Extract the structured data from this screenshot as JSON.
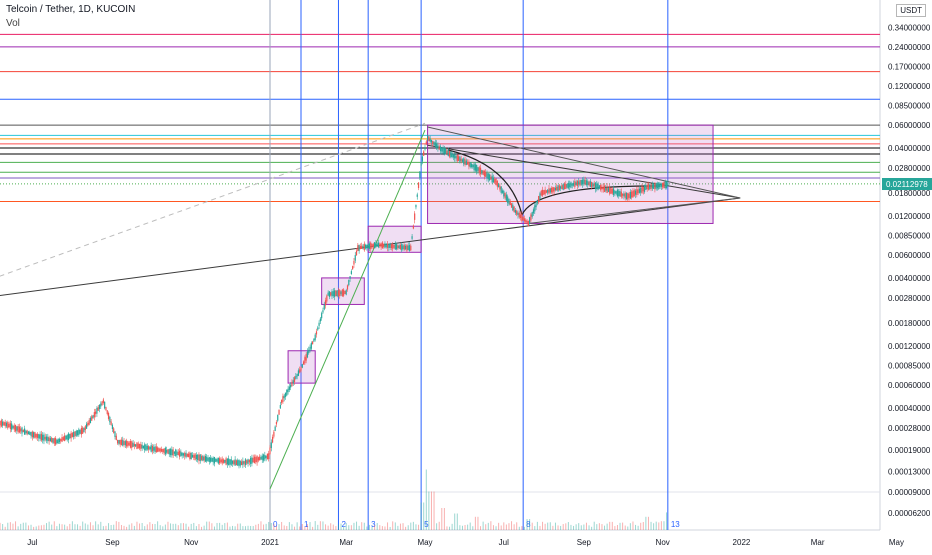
{
  "header": {
    "symbol_line": "Telcoin / Tether, 1D, KUCOIN",
    "volume_label": "Vol",
    "currency": "USDT"
  },
  "chart_data": {
    "type": "candlestick",
    "scale": "log",
    "price_ticks": [
      "0.34000000",
      "0.24000000",
      "0.17000000",
      "0.12000000",
      "0.08500000",
      "0.06000000",
      "0.04000000",
      "0.02800000",
      "0.01800000",
      "0.01200000",
      "0.00850000",
      "0.00600000",
      "0.00400000",
      "0.00280000",
      "0.00180000",
      "0.00120000",
      "0.00085000",
      "0.00060000",
      "0.00040000",
      "0.00028000",
      "0.00019000",
      "0.00013000",
      "0.00009000",
      "0.00006200"
    ],
    "last_price": "0.02112978",
    "x_labels": [
      "Jul",
      "Sep",
      "Nov",
      "2021",
      "Mar",
      "May",
      "Jul",
      "Sep",
      "Nov",
      "2022",
      "Mar",
      "May"
    ],
    "fib_time_labels": [
      "0",
      "1",
      "2",
      "3",
      "5",
      "8",
      "13"
    ],
    "price_path": [
      [
        "2020-05-27",
        0.00032
      ],
      [
        "2020-06-10",
        0.0003
      ],
      [
        "2020-07-01",
        0.00025
      ],
      [
        "2020-07-20",
        0.00022
      ],
      [
        "2020-08-10",
        0.00027
      ],
      [
        "2020-08-25",
        0.00045
      ],
      [
        "2020-09-05",
        0.00022
      ],
      [
        "2020-09-25",
        0.0002
      ],
      [
        "2020-10-20",
        0.00018
      ],
      [
        "2020-11-15",
        0.00016
      ],
      [
        "2020-12-10",
        0.00015
      ],
      [
        "2020-12-31",
        0.00017
      ],
      [
        "2021-01-10",
        0.00045
      ],
      [
        "2021-01-25",
        0.0008
      ],
      [
        "2021-02-05",
        0.0014
      ],
      [
        "2021-02-15",
        0.003
      ],
      [
        "2021-03-01",
        0.0031
      ],
      [
        "2021-03-10",
        0.0068
      ],
      [
        "2021-03-25",
        0.0072
      ],
      [
        "2021-04-20",
        0.0068
      ],
      [
        "2021-04-28",
        0.03
      ],
      [
        "2021-05-03",
        0.048
      ],
      [
        "2021-05-12",
        0.04
      ],
      [
        "2021-05-25",
        0.034
      ],
      [
        "2021-06-10",
        0.028
      ],
      [
        "2021-06-25",
        0.022
      ],
      [
        "2021-07-10",
        0.013
      ],
      [
        "2021-07-20",
        0.0105
      ],
      [
        "2021-07-30",
        0.018
      ],
      [
        "2021-08-15",
        0.02
      ],
      [
        "2021-09-01",
        0.022
      ],
      [
        "2021-09-20",
        0.019
      ],
      [
        "2021-10-05",
        0.017
      ],
      [
        "2021-10-20",
        0.02
      ],
      [
        "2021-11-05",
        0.021
      ]
    ],
    "volume_spikes": [
      [
        "2021-04-30",
        0.25
      ],
      [
        "2021-05-03",
        0.55
      ],
      [
        "2021-05-06",
        0.35
      ],
      [
        "2021-05-15",
        0.2
      ],
      [
        "2021-05-25",
        0.15
      ],
      [
        "2021-06-10",
        0.12
      ],
      [
        "2021-07-20",
        0.1
      ],
      [
        "2021-10-20",
        0.12
      ],
      [
        "2021-11-01",
        0.08
      ],
      [
        "2021-11-05",
        0.16
      ]
    ],
    "horizontal_levels": [
      {
        "price": 0.3,
        "color": "#e91e63"
      },
      {
        "price": 0.24,
        "color": "#9c27b0"
      },
      {
        "price": 0.155,
        "color": "#f44336"
      },
      {
        "price": 0.095,
        "color": "#2962ff"
      },
      {
        "price": 0.06,
        "color": "#555555"
      },
      {
        "price": 0.05,
        "color": "#26c6da"
      },
      {
        "price": 0.047,
        "color": "#ff9800"
      },
      {
        "price": 0.043,
        "color": "#ff5252"
      },
      {
        "price": 0.04,
        "color": "#000000"
      },
      {
        "price": 0.036,
        "color": "#000000"
      },
      {
        "price": 0.031,
        "color": "#4caf50"
      },
      {
        "price": 0.026,
        "color": "#4caf50"
      },
      {
        "price": 0.0235,
        "color": "#7e57c2"
      },
      {
        "price": 0.0212,
        "color": "#4caf50",
        "dotted": true
      },
      {
        "price": 0.0155,
        "color": "#ff5722"
      }
    ],
    "fib_time_dates": [
      "2021-01-01",
      "2021-01-25",
      "2021-02-23",
      "2021-03-18",
      "2021-04-28",
      "2021-07-16",
      "2021-11-05"
    ],
    "boxes": [
      {
        "from": "2021-01-15",
        "to": "2021-02-05",
        "hi": 0.0011,
        "lo": 0.00062
      },
      {
        "from": "2021-02-10",
        "to": "2021-03-15",
        "hi": 0.004,
        "lo": 0.0025
      },
      {
        "from": "2021-03-18",
        "to": "2021-04-28",
        "hi": 0.01,
        "lo": 0.0063
      },
      {
        "from": "2021-05-03",
        "to": "2021-12-10",
        "hi": 0.06,
        "lo": 0.0105
      }
    ],
    "trend_lines": [
      {
        "from": [
          "2020-04-01",
          0.0024
        ],
        "to": [
          "2021-12-31",
          0.0165
        ],
        "color": "#3a3a3a"
      },
      {
        "from": [
          "2021-05-03",
          0.042
        ],
        "to": [
          "2021-12-31",
          0.0165
        ],
        "color": "#3a3a3a"
      },
      {
        "from": [
          "2021-05-03",
          0.058
        ],
        "to": [
          "2021-12-31",
          0.0165
        ],
        "color": "#555555"
      },
      {
        "from": [
          "2021-07-20",
          0.0105
        ],
        "to": [
          "2021-12-31",
          0.0165
        ],
        "color": "#555555"
      },
      {
        "from": [
          "2021-01-01",
          9.5e-05
        ],
        "to": [
          "2021-05-01",
          0.055
        ],
        "color": "#4caf50"
      },
      {
        "from": [
          "2020-04-01",
          0.0024
        ],
        "to": [
          "2021-05-01",
          0.062
        ],
        "color": "#bdbdbd",
        "dashed": true
      }
    ]
  }
}
